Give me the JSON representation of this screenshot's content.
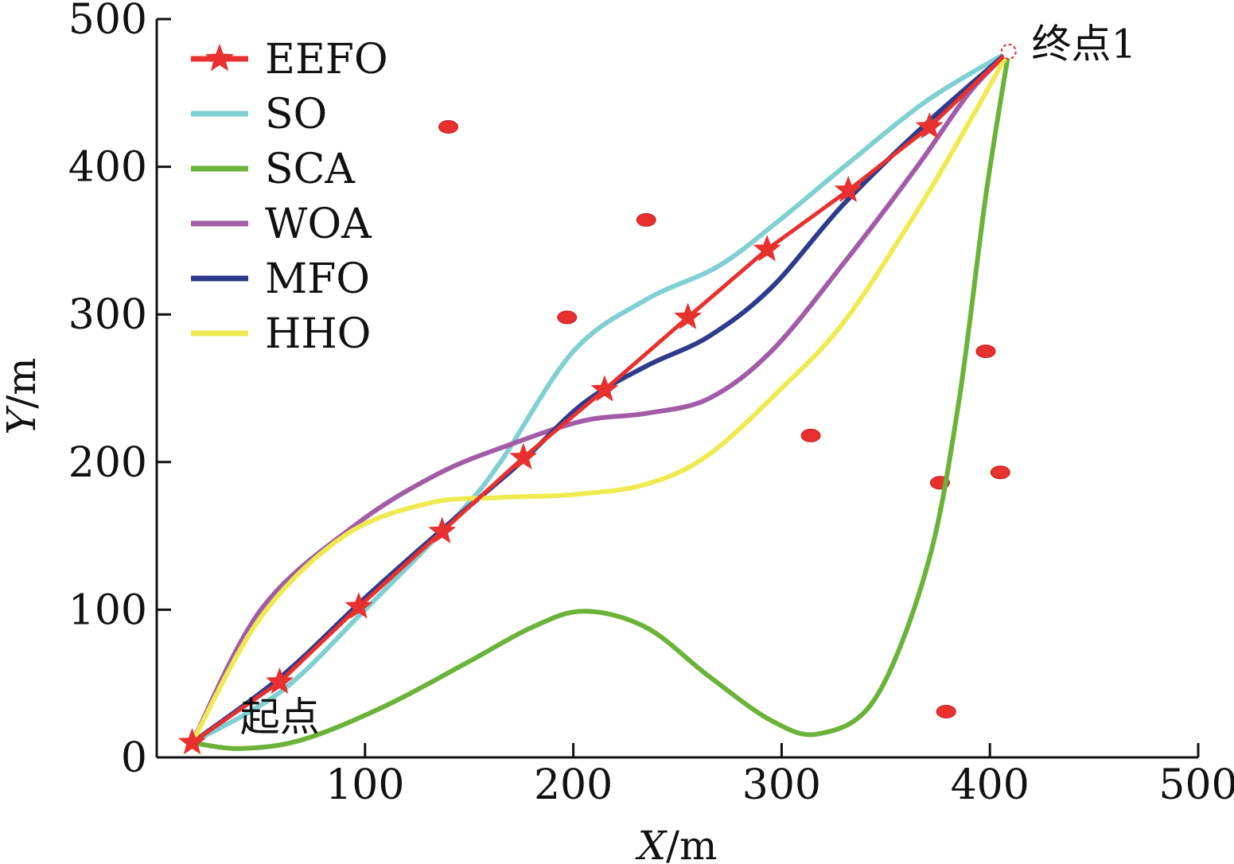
{
  "chart_data": {
    "type": "line",
    "xlabel": "X/m",
    "ylabel": "Y/m",
    "xlim": [
      0,
      500
    ],
    "ylim": [
      0,
      500
    ],
    "xticks": [
      "100",
      "200",
      "300",
      "400",
      "500"
    ],
    "yticks": [
      "0",
      "100",
      "200",
      "300",
      "400",
      "500"
    ],
    "legend_position": "top-left",
    "annotations": [
      {
        "text": "起点",
        "x": 40,
        "y": 18
      },
      {
        "text": "终点1",
        "x": 420,
        "y": 474
      }
    ],
    "start": {
      "x": 17,
      "y": 10
    },
    "end": {
      "x": 409,
      "y": 478
    },
    "series": [
      {
        "name": "EEFO",
        "color": "#e8302e",
        "marker": "star",
        "points": [
          [
            17,
            10
          ],
          [
            59,
            51
          ],
          [
            97,
            102
          ],
          [
            137,
            153
          ],
          [
            176,
            203
          ],
          [
            215,
            249
          ],
          [
            255,
            298
          ],
          [
            293,
            344
          ],
          [
            332,
            384
          ],
          [
            371,
            427
          ],
          [
            409,
            478
          ]
        ],
        "markers": [
          [
            17,
            10
          ],
          [
            59,
            51
          ],
          [
            97,
            102
          ],
          [
            137,
            153
          ],
          [
            176,
            203
          ],
          [
            215,
            249
          ],
          [
            255,
            298
          ],
          [
            293,
            344
          ],
          [
            332,
            384
          ],
          [
            371,
            427
          ]
        ]
      },
      {
        "name": "SO",
        "color": "#7fcfd3",
        "points": [
          [
            17,
            10
          ],
          [
            60,
            45
          ],
          [
            100,
            100
          ],
          [
            145,
            165
          ],
          [
            165,
            200
          ],
          [
            200,
            275
          ],
          [
            235,
            310
          ],
          [
            270,
            333
          ],
          [
            300,
            365
          ],
          [
            330,
            400
          ],
          [
            370,
            445
          ],
          [
            409,
            478
          ]
        ]
      },
      {
        "name": "SCA",
        "color": "#6ab338",
        "points": [
          [
            17,
            10
          ],
          [
            40,
            6
          ],
          [
            70,
            12
          ],
          [
            110,
            35
          ],
          [
            150,
            65
          ],
          [
            180,
            88
          ],
          [
            205,
            99
          ],
          [
            235,
            88
          ],
          [
            265,
            55
          ],
          [
            295,
            25
          ],
          [
            318,
            16
          ],
          [
            345,
            40
          ],
          [
            370,
            130
          ],
          [
            385,
            240
          ],
          [
            398,
            380
          ],
          [
            409,
            478
          ]
        ]
      },
      {
        "name": "WOA",
        "color": "#a25ba6",
        "points": [
          [
            17,
            10
          ],
          [
            50,
            100
          ],
          [
            95,
            157
          ],
          [
            135,
            192
          ],
          [
            170,
            212
          ],
          [
            205,
            228
          ],
          [
            235,
            233
          ],
          [
            265,
            243
          ],
          [
            295,
            275
          ],
          [
            330,
            335
          ],
          [
            365,
            400
          ],
          [
            390,
            450
          ],
          [
            409,
            478
          ]
        ]
      },
      {
        "name": "MFO",
        "color": "#2e3a8c",
        "points": [
          [
            17,
            10
          ],
          [
            60,
            55
          ],
          [
            100,
            108
          ],
          [
            140,
            158
          ],
          [
            175,
            200
          ],
          [
            205,
            240
          ],
          [
            235,
            265
          ],
          [
            265,
            285
          ],
          [
            295,
            318
          ],
          [
            330,
            375
          ],
          [
            370,
            430
          ],
          [
            409,
            478
          ]
        ]
      },
      {
        "name": "HHO",
        "color": "#eeea50",
        "points": [
          [
            17,
            10
          ],
          [
            50,
            95
          ],
          [
            90,
            150
          ],
          [
            130,
            172
          ],
          [
            165,
            176
          ],
          [
            200,
            178
          ],
          [
            235,
            185
          ],
          [
            265,
            205
          ],
          [
            300,
            250
          ],
          [
            330,
            295
          ],
          [
            365,
            370
          ],
          [
            390,
            430
          ],
          [
            409,
            478
          ]
        ]
      }
    ],
    "obstacles": [
      [
        140,
        427
      ],
      [
        235,
        364
      ],
      [
        197,
        298
      ],
      [
        398,
        275
      ],
      [
        314,
        218
      ],
      [
        376,
        186
      ],
      [
        405,
        193
      ],
      [
        379,
        31
      ]
    ]
  }
}
